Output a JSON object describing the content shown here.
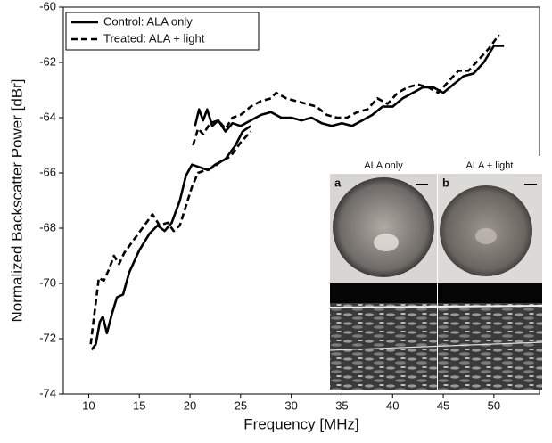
{
  "chart_data": {
    "type": "line",
    "xlabel": "Frequency [MHz]",
    "ylabel": "Normalized Backscatter Power [dBr]",
    "xlim": [
      7.5,
      54.5
    ],
    "xticks": [
      10,
      15,
      20,
      25,
      30,
      35,
      40,
      45,
      50
    ],
    "ylim": [
      -74,
      -60
    ],
    "yticks": [
      -60,
      -62,
      -64,
      -66,
      -68,
      -70,
      -72,
      -74
    ],
    "legend": "upper left",
    "series": [
      {
        "name": "Control: ALA only",
        "color": "#000000",
        "dash": "solid",
        "x": [
          10.3,
          10.7,
          11.1,
          11.4,
          11.8,
          12.3,
          12.8,
          13.4,
          14,
          15,
          16,
          16.8,
          17.5,
          18.2,
          19,
          19.6,
          20.2,
          21,
          21.8,
          22.5,
          23.5,
          24.5,
          25.2,
          26,
          null,
          20.5,
          20.9,
          21.3,
          21.7,
          22.2,
          22.8,
          23.5,
          24.2,
          25,
          26,
          27,
          28,
          29,
          30,
          31,
          32,
          33,
          34,
          35,
          36,
          37,
          38,
          39,
          40,
          41,
          42,
          43,
          44,
          45,
          46,
          47,
          48,
          49,
          50,
          51
        ],
        "values": [
          -72.4,
          -72.2,
          -71.4,
          -71.2,
          -71.8,
          -71.1,
          -70.5,
          -70.4,
          -69.6,
          -68.8,
          -68.2,
          -67.9,
          -68.1,
          -67.8,
          -67,
          -66.1,
          -65.7,
          -65.8,
          -65.9,
          -65.7,
          -65.5,
          -65,
          -64.5,
          -64.3,
          null,
          -64.3,
          -63.7,
          -64.1,
          -63.7,
          -64.3,
          -64.1,
          -64.5,
          -64.2,
          -64.3,
          -64.1,
          -63.9,
          -63.8,
          -64,
          -64,
          -64.1,
          -64,
          -64.2,
          -64.3,
          -64.2,
          -64.3,
          -64.1,
          -63.9,
          -63.6,
          -63.6,
          -63.3,
          -63.1,
          -62.9,
          -62.9,
          -63.1,
          -62.8,
          -62.5,
          -62.4,
          -62,
          -61.4,
          -61.4
        ]
      },
      {
        "name": "Treated: ALA + light",
        "color": "#000000",
        "dash": "dashed",
        "x": [
          10.2,
          10.6,
          11,
          11.5,
          12,
          12.5,
          13,
          13.5,
          14.5,
          15.5,
          16.3,
          17,
          17.8,
          18.4,
          19,
          19.6,
          20.2,
          20.8,
          21.5,
          22.3,
          23,
          24,
          25,
          26,
          null,
          20.3,
          20.8,
          21.3,
          22,
          22.8,
          23.5,
          24.2,
          25,
          26,
          27,
          28,
          28.5,
          29.5,
          30.5,
          31.5,
          32.5,
          33.5,
          34.5,
          35.5,
          36.5,
          37.5,
          38.5,
          39.5,
          40.5,
          41.5,
          42.5,
          43.5,
          44.5,
          45.5,
          46.5,
          47.5,
          48.5,
          49.5,
          50.5
        ],
        "values": [
          -72.2,
          -71,
          -69.8,
          -69.9,
          -69.5,
          -69,
          -69.3,
          -68.9,
          -68.4,
          -67.9,
          -67.5,
          -67.9,
          -67.8,
          -68.1,
          -67.9,
          -67.2,
          -66.5,
          -66,
          -65.9,
          -65.8,
          -65.6,
          -65.4,
          -64.9,
          -64.5,
          null,
          -65,
          -64.4,
          -64.6,
          -64.2,
          -64.1,
          -64.4,
          -64,
          -63.9,
          -63.6,
          -63.4,
          -63.3,
          -63.1,
          -63.3,
          -63.4,
          -63.5,
          -63.6,
          -63.9,
          -64,
          -64,
          -63.8,
          -63.7,
          -63.3,
          -63.5,
          -63.1,
          -62.9,
          -62.8,
          -62.9,
          -63.1,
          -62.7,
          -62.3,
          -62.3,
          -61.9,
          -61.5,
          -61
        ]
      }
    ],
    "inset": {
      "panel_titles": [
        "ALA only",
        "ALA + light"
      ],
      "panel_letters": [
        "a",
        "b"
      ]
    }
  }
}
